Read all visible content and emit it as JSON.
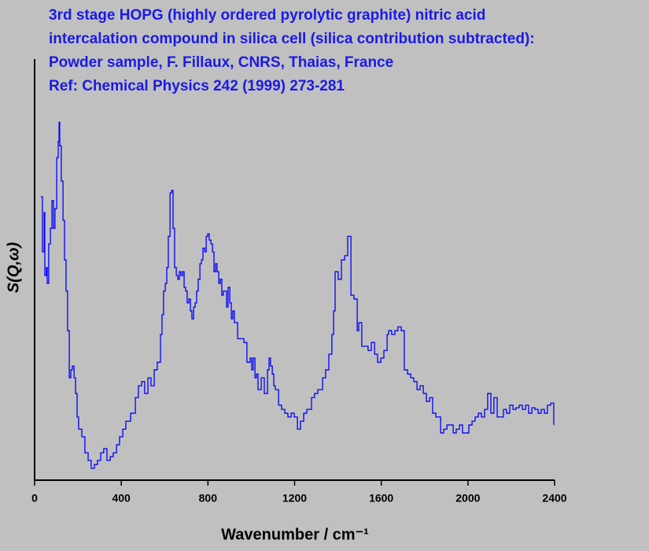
{
  "chart_data": {
    "type": "line",
    "step": true,
    "title": [
      "3rd stage HOPG (highly ordered pyrolytic graphite) nitric acid",
      "intercalation compound in silica cell (silica contribution subtracted):",
      "Powder sample, F. Fillaux, CNRS, Thaias, France",
      "Ref: Chemical Physics 242 (1999) 273-281"
    ],
    "title_color": "#1a1ae6",
    "xlabel": "Wavenumber / cm⁻¹",
    "ylabel": "S(Q,ω)",
    "xlim": [
      0,
      2400
    ],
    "xticks": [
      0,
      400,
      800,
      1200,
      1600,
      2000,
      2400
    ],
    "ylim": [
      0,
      100
    ],
    "series": [
      {
        "name": "S",
        "color": "#0000ff",
        "x": [
          29,
          36,
          44,
          47,
          54,
          58,
          65,
          73,
          80,
          87,
          94,
          102,
          109,
          113,
          116,
          123,
          131,
          138,
          145,
          152,
          160,
          167,
          174,
          182,
          189,
          196,
          203,
          218,
          232,
          247,
          261,
          276,
          290,
          305,
          319,
          334,
          349,
          363,
          378,
          392,
          407,
          421,
          443,
          465,
          479,
          494,
          508,
          523,
          537,
          552,
          566,
          581,
          588,
          595,
          603,
          610,
          617,
          625,
          632,
          639,
          646,
          654,
          661,
          668,
          675,
          683,
          690,
          697,
          704,
          712,
          719,
          726,
          734,
          741,
          748,
          755,
          763,
          770,
          777,
          785,
          792,
          799,
          806,
          814,
          821,
          828,
          835,
          842,
          850,
          857,
          864,
          871,
          879,
          886,
          893,
          901,
          908,
          915,
          922,
          937,
          951,
          966,
          980,
          995,
          1002,
          1009,
          1017,
          1024,
          1031,
          1046,
          1060,
          1075,
          1082,
          1089,
          1097,
          1104,
          1111,
          1126,
          1140,
          1155,
          1169,
          1184,
          1198,
          1213,
          1227,
          1242,
          1256,
          1278,
          1292,
          1307,
          1322,
          1329,
          1343,
          1358,
          1372,
          1380,
          1387,
          1401,
          1416,
          1431,
          1445,
          1460,
          1474,
          1489,
          1496,
          1510,
          1525,
          1539,
          1554,
          1569,
          1583,
          1598,
          1612,
          1627,
          1634,
          1648,
          1663,
          1677,
          1692,
          1706,
          1721,
          1736,
          1750,
          1765,
          1779,
          1794,
          1808,
          1823,
          1837,
          1852,
          1874,
          1888,
          1903,
          1917,
          1932,
          1946,
          1961,
          1975,
          1990,
          2004,
          2019,
          2033,
          2048,
          2062,
          2077,
          2091,
          2106,
          2120,
          2135,
          2149,
          2164,
          2178,
          2193,
          2208,
          2222,
          2237,
          2251,
          2266,
          2280,
          2295,
          2309,
          2324,
          2338,
          2353,
          2367,
          2382,
          2396
        ],
        "values": [
          67.3,
          54.2,
          63.6,
          48.6,
          50.5,
          46.7,
          56.1,
          59.8,
          66.4,
          59.8,
          64.5,
          76.6,
          80.4,
          85.0,
          79.4,
          71.0,
          61.7,
          52.3,
          44.9,
          35.5,
          24.3,
          26.2,
          27.1,
          24.3,
          20.6,
          15.0,
          12.1,
          10.3,
          6.5,
          4.7,
          2.8,
          3.7,
          4.7,
          6.5,
          7.5,
          4.7,
          5.6,
          6.5,
          8.4,
          10.3,
          12.1,
          14.0,
          15.9,
          19.6,
          22.4,
          23.4,
          20.6,
          24.3,
          22.4,
          26.2,
          28.0,
          34.6,
          39.3,
          44.9,
          46.7,
          50.5,
          57.9,
          68.2,
          68.8,
          59.8,
          50.5,
          48.6,
          47.7,
          49.5,
          48.6,
          49.5,
          45.8,
          44.9,
          42.1,
          43.0,
          40.2,
          38.3,
          41.1,
          42.1,
          44.9,
          47.7,
          51.4,
          52.3,
          55.1,
          54.2,
          57.9,
          58.5,
          57.0,
          56.1,
          54.2,
          49.5,
          51.4,
          49.5,
          46.7,
          47.7,
          43.9,
          44.9,
          44.9,
          41.1,
          45.8,
          42.1,
          38.3,
          40.2,
          37.4,
          33.6,
          33.6,
          32.7,
          28.0,
          29.0,
          26.2,
          29.0,
          24.3,
          25.2,
          21.5,
          24.3,
          20.6,
          26.2,
          29.0,
          27.1,
          25.2,
          22.4,
          21.5,
          17.8,
          16.8,
          15.9,
          15.0,
          15.9,
          15.0,
          12.1,
          14.0,
          15.9,
          16.8,
          19.6,
          20.6,
          21.5,
          21.5,
          24.3,
          26.2,
          29.9,
          34.6,
          40.2,
          49.5,
          47.7,
          52.3,
          53.3,
          57.9,
          43.9,
          43.0,
          35.5,
          37.4,
          31.8,
          31.8,
          30.8,
          32.7,
          29.9,
          28.0,
          29.0,
          30.8,
          34.6,
          35.5,
          34.6,
          35.5,
          36.4,
          35.5,
          26.2,
          25.2,
          24.3,
          23.4,
          21.5,
          22.4,
          20.6,
          18.7,
          19.6,
          15.9,
          15.0,
          11.2,
          12.1,
          13.1,
          13.1,
          11.2,
          12.1,
          13.1,
          11.2,
          11.2,
          13.1,
          14.0,
          15.0,
          15.9,
          15.0,
          16.8,
          20.6,
          15.9,
          19.6,
          15.0,
          15.0,
          16.8,
          15.9,
          17.8,
          16.8,
          17.2,
          17.8,
          16.8,
          17.8,
          15.9,
          17.2,
          16.8,
          15.9,
          16.8,
          15.9,
          17.8,
          18.3,
          13.1
        ]
      }
    ]
  }
}
